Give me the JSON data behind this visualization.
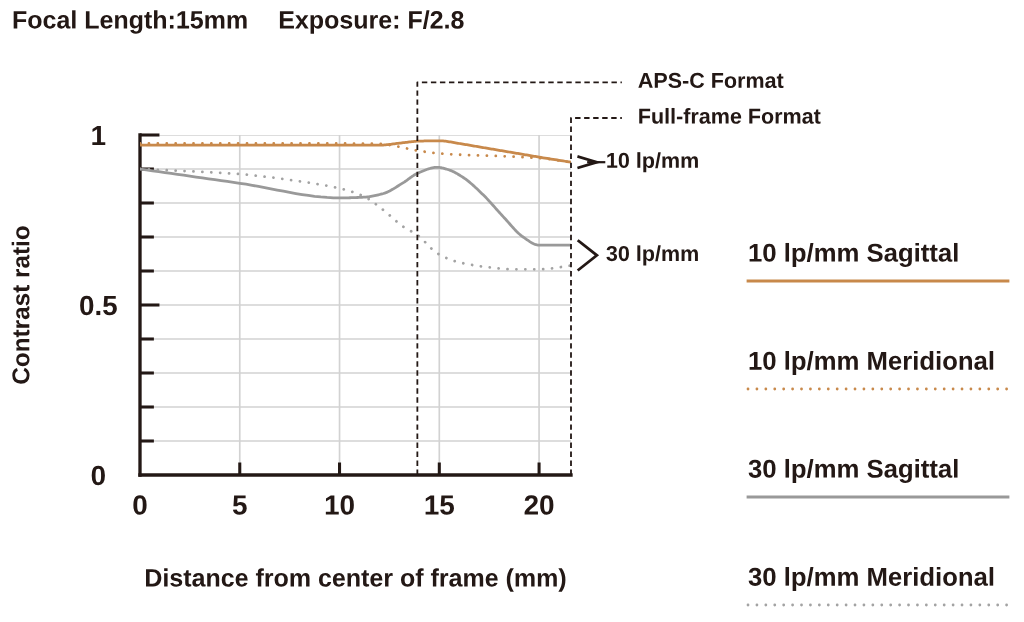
{
  "chart_data": {
    "type": "line",
    "title": "Focal Length:15mm",
    "subtitle": "Exposure: F/2.8",
    "xlabel": "Distance from center of frame (mm)",
    "ylabel": "Contrast ratio",
    "series": [
      {
        "name": "10 lp/mm Sagittal",
        "color": "#c8894b",
        "line_style": "solid",
        "x": [
          0,
          5,
          10,
          12,
          13,
          14,
          15,
          16,
          17,
          18,
          19,
          20,
          21.6
        ],
        "values": [
          0.97,
          0.97,
          0.97,
          0.97,
          0.976,
          0.982,
          0.983,
          0.975,
          0.965,
          0.955,
          0.945,
          0.935,
          0.92
        ]
      },
      {
        "name": "10 lp/mm Meridional",
        "color": "#c8894b",
        "line_style": "dotted",
        "x": [
          0,
          5,
          10,
          12,
          13,
          14,
          15,
          16,
          18,
          20,
          21.6
        ],
        "values": [
          0.975,
          0.975,
          0.975,
          0.974,
          0.965,
          0.953,
          0.946,
          0.942,
          0.938,
          0.932,
          0.92
        ]
      },
      {
        "name": "30 lp/mm Sagittal",
        "color": "#999999",
        "line_style": "solid",
        "x": [
          0,
          5,
          10,
          11.2,
          12.2,
          13.2,
          13.9,
          14.9,
          15.5,
          16.2,
          17.2,
          18.2,
          19.2,
          20,
          21.6
        ],
        "values": [
          0.9,
          0.858,
          0.815,
          0.817,
          0.828,
          0.86,
          0.887,
          0.905,
          0.897,
          0.875,
          0.824,
          0.76,
          0.7,
          0.676,
          0.676
        ]
      },
      {
        "name": "30 lp/mm Meridional",
        "color": "#a3a3a3",
        "line_style": "dotted",
        "x": [
          0,
          5,
          7.5,
          10,
          11.2,
          12.2,
          13.2,
          13.9,
          14.9,
          15.9,
          17.2,
          18.7,
          20,
          21.6
        ],
        "values": [
          0.9,
          0.885,
          0.868,
          0.843,
          0.82,
          0.779,
          0.73,
          0.706,
          0.652,
          0.627,
          0.613,
          0.605,
          0.605,
          0.616
        ]
      }
    ],
    "xlim": [
      0,
      21.6
    ],
    "xticks": [
      0,
      5,
      10,
      15,
      20
    ],
    "ylim": [
      0,
      1
    ],
    "yticks": [
      0,
      {
        "value": 0.1,
        "label": null
      },
      {
        "value": 0.2,
        "label": null
      },
      {
        "value": 0.3,
        "label": null
      },
      {
        "value": 0.4,
        "label": null
      },
      0.5,
      {
        "value": 0.6,
        "label": null
      },
      {
        "value": 0.7,
        "label": null
      },
      {
        "value": 0.8,
        "label": null
      },
      {
        "value": 0.9,
        "label": null
      },
      1
    ],
    "grid": true,
    "legend": "right",
    "ref_lines": [
      {
        "axis": "x",
        "value": 13.9,
        "label": "APS-C Format",
        "color": "#231815",
        "line_style": "dashed"
      },
      {
        "axis": "x",
        "value": 21.6,
        "label": "Full-frame Format",
        "color": "#231815",
        "line_style": "dashed"
      }
    ],
    "annotations": [
      {
        "text": "10 lp/mm",
        "x": 21.6,
        "y": 0.92
      },
      {
        "text": "30 lp/mm",
        "x": 21.6,
        "y": 0.646
      }
    ]
  }
}
